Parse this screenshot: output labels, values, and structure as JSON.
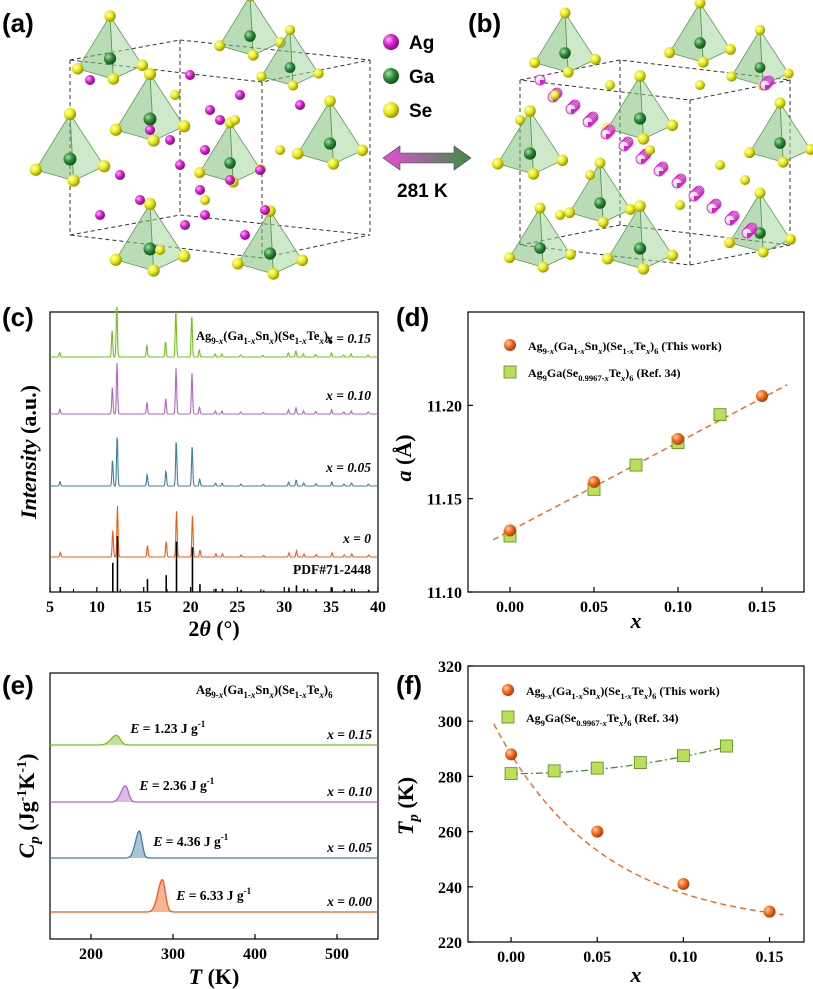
{
  "figure": {
    "panel_labels": [
      "(a)",
      "(b)",
      "(c)",
      "(d)",
      "(e)",
      "(f)"
    ],
    "crystal_legend": [
      "Ag",
      "Ga",
      "Se"
    ],
    "transition_label": "281 K",
    "colors": {
      "ag": "#d81fcf",
      "ga": "#2e8b3a",
      "se": "#e6e600",
      "x015": "#73c21c",
      "x010": "#b265c7",
      "x005": "#3f7fa3",
      "x0": "#f05a14",
      "pdf": "#000000",
      "fit_orange": "#f0651e",
      "fit_green": "#4a8f2a"
    }
  },
  "chart_data": [
    {
      "panel": "(c)",
      "type": "line",
      "title": "Ag9-x(Ga1-xSnx)(Se1-xTex)6",
      "xlabel": "2θ (°)",
      "ylabel": "Intensity (a.u.)",
      "xlim": [
        5,
        40
      ],
      "xticks": [
        "5",
        "10",
        "15",
        "20",
        "25",
        "30",
        "35",
        "40"
      ],
      "series_labels": [
        "x = 0.15",
        "x = 0.10",
        "x = 0.05",
        "x = 0",
        "PDF#71-2448"
      ],
      "peaks": [
        {
          "pos": 6.1,
          "h": 0.09
        },
        {
          "pos": 11.7,
          "h": 0.52
        },
        {
          "pos": 12.2,
          "h": 1.0
        },
        {
          "pos": 15.4,
          "h": 0.23
        },
        {
          "pos": 17.4,
          "h": 0.3
        },
        {
          "pos": 18.5,
          "h": 0.9
        },
        {
          "pos": 20.2,
          "h": 0.8
        },
        {
          "pos": 21.0,
          "h": 0.14
        },
        {
          "pos": 22.7,
          "h": 0.06
        },
        {
          "pos": 23.4,
          "h": 0.06
        },
        {
          "pos": 25.4,
          "h": 0.04
        },
        {
          "pos": 27.8,
          "h": 0.03
        },
        {
          "pos": 30.5,
          "h": 0.08
        },
        {
          "pos": 31.3,
          "h": 0.12
        },
        {
          "pos": 32.1,
          "h": 0.06
        },
        {
          "pos": 33.4,
          "h": 0.05
        },
        {
          "pos": 35.1,
          "h": 0.08
        },
        {
          "pos": 36.4,
          "h": 0.04
        },
        {
          "pos": 37.2,
          "h": 0.06
        },
        {
          "pos": 39.0,
          "h": 0.04
        }
      ]
    },
    {
      "panel": "(d)",
      "type": "scatter",
      "xlabel": "x",
      "ylabel": "a (Å)",
      "xlim": [
        -0.025,
        0.175
      ],
      "ylim": [
        11.1,
        11.25
      ],
      "xticks": [
        "0.00",
        "0.05",
        "0.10",
        "0.15"
      ],
      "yticks": [
        "11.10",
        "11.15",
        "11.20"
      ],
      "legend": [
        "Ag9-x(Ga1-xSnx)(Se1-xTex)6 (This work)",
        "Ag9Ga(Se0.9967-xTex)6 (Ref. 34)"
      ],
      "series": [
        {
          "name": "This work",
          "x": [
            0,
            0.05,
            0.1,
            0.15
          ],
          "y": [
            11.133,
            11.159,
            11.182,
            11.205
          ]
        },
        {
          "name": "Ref. 34",
          "x": [
            0,
            0.05,
            0.075,
            0.1,
            0.125
          ],
          "y": [
            11.13,
            11.155,
            11.168,
            11.18,
            11.195
          ]
        }
      ],
      "fit": {
        "x": [
          -0.01,
          0.165
        ],
        "y": [
          11.128,
          11.211
        ]
      }
    },
    {
      "panel": "(e)",
      "type": "line",
      "title": "Ag9-x(Ga1-xSnx)(Se1-xTex)6",
      "xlabel": "T (K)",
      "ylabel": "Cp (Jg-1K-1)",
      "xlim": [
        150,
        550
      ],
      "xticks": [
        "200",
        "300",
        "400",
        "500"
      ],
      "series": [
        {
          "name": "x = 0.15",
          "peak_T": 231,
          "height": 0.27,
          "width": 11,
          "energy": "E = 1.23 J g-1"
        },
        {
          "name": "x = 0.10",
          "peak_T": 242,
          "height": 0.45,
          "width": 9,
          "energy": "E = 2.36 J g-1"
        },
        {
          "name": "x = 0.05",
          "peak_T": 259,
          "height": 0.75,
          "width": 8,
          "energy": "E = 4.36 J g-1"
        },
        {
          "name": "x = 0.00",
          "peak_T": 287,
          "height": 0.9,
          "width": 9,
          "energy": "E = 6.33 J g-1"
        }
      ]
    },
    {
      "panel": "(f)",
      "type": "scatter",
      "xlabel": "x",
      "ylabel": "Tp (K)",
      "xlim": [
        -0.025,
        0.17
      ],
      "ylim": [
        220,
        320
      ],
      "xticks": [
        "0.00",
        "0.05",
        "0.10",
        "0.15"
      ],
      "yticks": [
        "220",
        "240",
        "260",
        "280",
        "300",
        "320"
      ],
      "legend": [
        "Ag9-x(Ga1-xSnx)(Se1-xTex)6 (This work)",
        "Ag9Ga(Se0.9967-xTex)6 (Ref. 34)"
      ],
      "series": [
        {
          "name": "This work",
          "x": [
            0,
            0.05,
            0.1,
            0.15
          ],
          "y": [
            288,
            260,
            241,
            231
          ]
        },
        {
          "name": "Ref. 34",
          "x": [
            0,
            0.025,
            0.05,
            0.075,
            0.1,
            0.125
          ],
          "y": [
            281,
            282,
            283,
            285,
            287.5,
            291
          ]
        }
      ]
    }
  ]
}
